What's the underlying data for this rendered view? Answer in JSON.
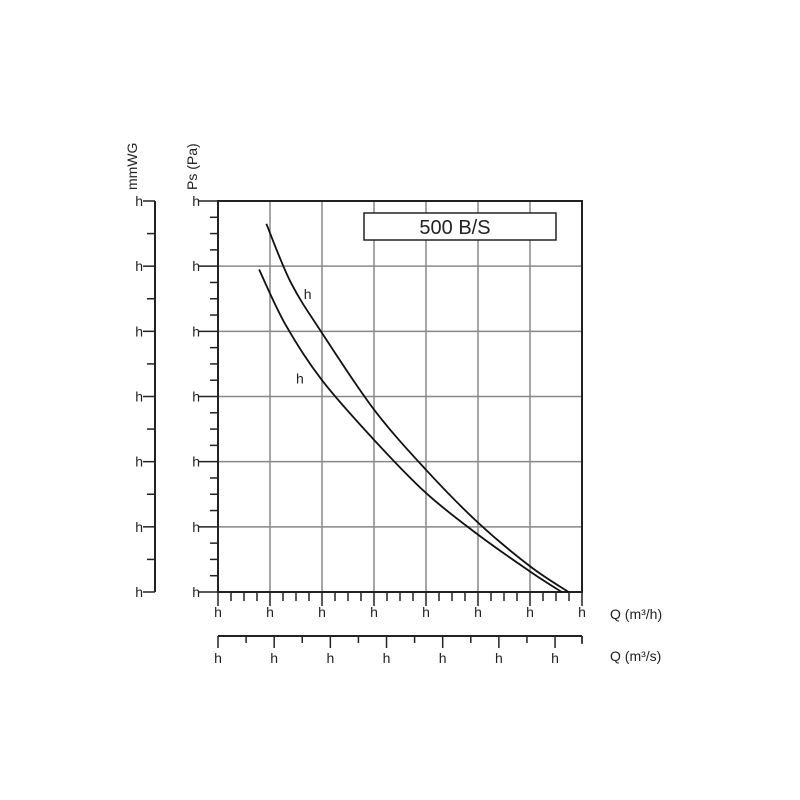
{
  "chart_data": {
    "type": "line",
    "title": "500 B/S",
    "xlabel": "Q (m³/h)",
    "xlabel2": "Q (m³/s)",
    "ylabel": "Ps (Pa)",
    "ylabel2": "mmWG",
    "xlim": [
      0,
      7000
    ],
    "ylim": [
      0,
      120
    ],
    "x2lim": [
      0,
      1.944
    ],
    "y2lim": [
      0,
      12
    ],
    "grid": true,
    "xticks": [
      "0",
      "1000",
      "2000",
      "3000",
      "4000",
      "5000",
      "6000",
      "7000"
    ],
    "yticks": [
      "0",
      "20",
      "40",
      "60",
      "80",
      "100",
      "120"
    ],
    "x2ticks": [
      "0",
      "0.3",
      "0.6",
      "0.9",
      "1.2",
      "1.5",
      "1.8"
    ],
    "y2ticks": [
      "0",
      "2",
      "4",
      "6",
      "8",
      "10",
      "12"
    ],
    "series": [
      {
        "name": "4T",
        "x": [
          930,
          1400,
          2000,
          3000,
          4000,
          5000,
          6000,
          6740
        ],
        "y": [
          113,
          95,
          79.5,
          56,
          37.5,
          21.3,
          7.9,
          0
        ]
      },
      {
        "name": "4M",
        "x": [
          790,
          1300,
          2000,
          3000,
          4000,
          5000,
          6000,
          6610
        ],
        "y": [
          99,
          82,
          65,
          46.7,
          30.4,
          17.6,
          6.3,
          0
        ]
      }
    ]
  }
}
